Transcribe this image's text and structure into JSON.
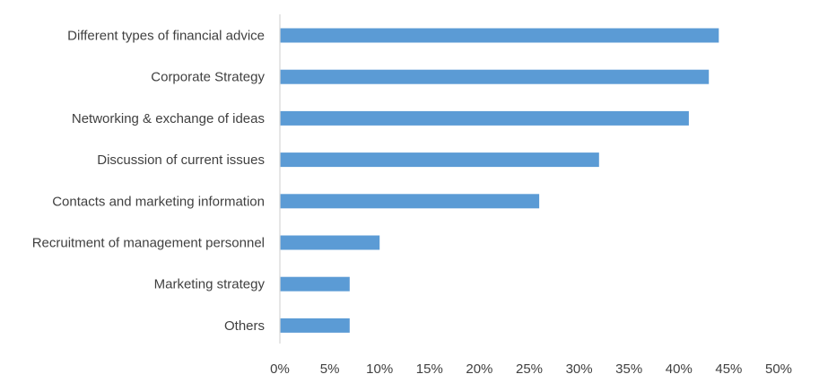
{
  "chart_data": {
    "type": "bar",
    "orientation": "horizontal",
    "categories": [
      "Different types of financial advice",
      "Corporate Strategy",
      "Networking & exchange of ideas",
      "Discussion of current issues",
      "Contacts and marketing information",
      "Recruitment of management personnel",
      "Marketing strategy",
      "Others"
    ],
    "values": [
      44,
      43,
      41,
      32,
      26,
      10,
      7,
      7
    ],
    "value_unit": "%",
    "xlim": [
      0,
      50
    ],
    "xticks": [
      "0%",
      "5%",
      "10%",
      "15%",
      "20%",
      "25%",
      "30%",
      "35%",
      "40%",
      "45%",
      "50%"
    ],
    "title": "",
    "xlabel": "",
    "ylabel": "",
    "grid": false,
    "legend": "none",
    "bar_color": "#5b9bd5",
    "axis_color": "#d9d9d9",
    "text_color": "#404040"
  }
}
